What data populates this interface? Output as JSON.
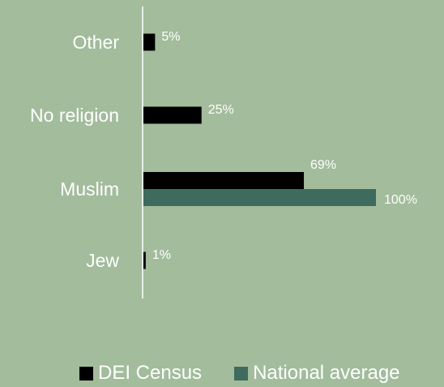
{
  "chart_data": {
    "type": "bar",
    "orientation": "horizontal",
    "categories": [
      "Other",
      "No religion",
      "Muslim",
      "Jew"
    ],
    "series": [
      {
        "name": "DEI Census",
        "values": [
          5,
          25,
          69,
          1
        ],
        "labels": [
          "5%",
          "25%",
          "69%",
          "1%"
        ],
        "color": "#000000"
      },
      {
        "name": "National average",
        "values": [
          null,
          null,
          100,
          null
        ],
        "labels": [
          "",
          "",
          "100%",
          ""
        ],
        "color": "#3e6b5e"
      }
    ],
    "xlim": [
      0,
      100
    ],
    "grid": false,
    "legend_position": "bottom"
  }
}
